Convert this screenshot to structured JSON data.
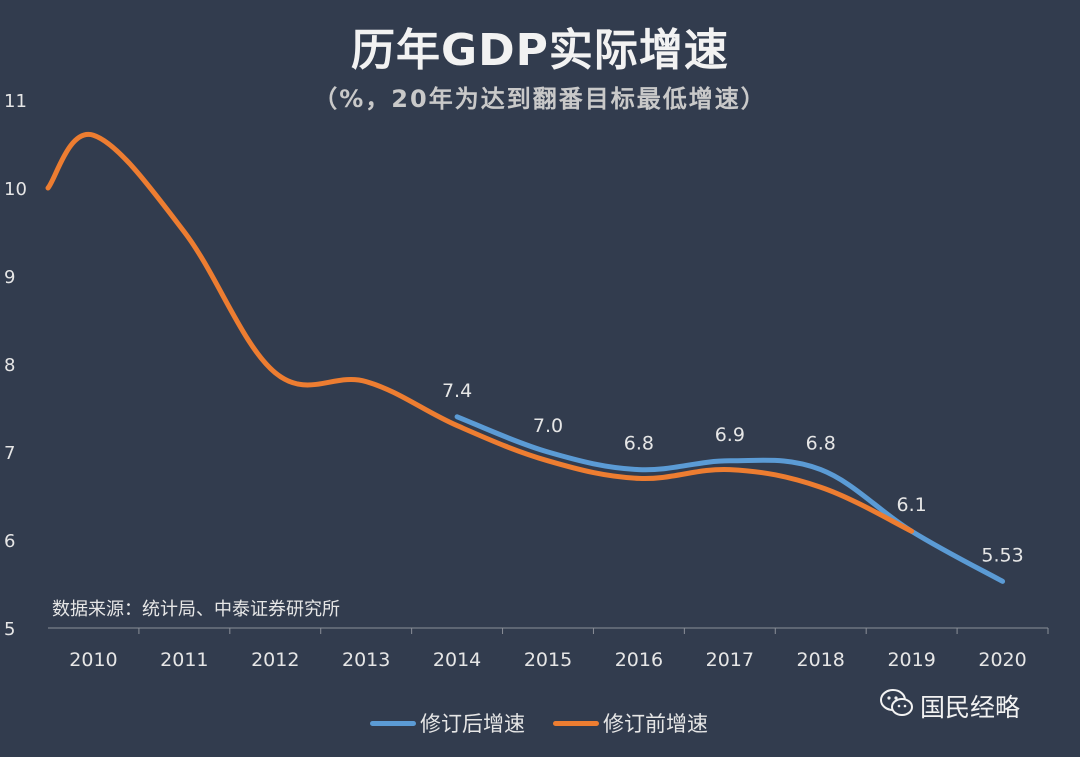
{
  "header": {
    "title": "历年GDP实际增速",
    "subtitle": "（%，20年为达到翻番目标最低增速）"
  },
  "footer": {
    "source": "数据来源：统计局、中泰证券研究所",
    "brand": "国民经略",
    "brand_icon": "wechat-icon"
  },
  "colors": {
    "background": "#323c4e",
    "revised": "#5b9bd5",
    "original": "#ed7d31",
    "text": "#e6e6e6",
    "axis": "#8a8f98"
  },
  "chart_data": {
    "type": "line",
    "title": "历年GDP实际增速",
    "subtitle": "（%，20年为达到翻番目标最低增速）",
    "xlabel": "",
    "ylabel": "",
    "categories": [
      "2010",
      "2011",
      "2012",
      "2013",
      "2014",
      "2015",
      "2016",
      "2017",
      "2018",
      "2019",
      "2020"
    ],
    "ylim": [
      5,
      11
    ],
    "yticks": [
      "5",
      "6",
      "7",
      "8",
      "9",
      "10",
      "11"
    ],
    "grid": false,
    "legend_position": "bottom",
    "series": [
      {
        "name": "修订后增速",
        "color": "#5b9bd5",
        "x": [
          "2014",
          "2015",
          "2016",
          "2017",
          "2018",
          "2019",
          "2020"
        ],
        "values": [
          7.4,
          7.0,
          6.8,
          6.9,
          6.8,
          6.1,
          5.53
        ],
        "labels": [
          "7.4",
          "7.0",
          "6.8",
          "6.9",
          "6.8",
          "6.1",
          "5.53"
        ]
      },
      {
        "name": "修订前增速",
        "color": "#ed7d31",
        "x": [
          "2010",
          "2011",
          "2012",
          "2013",
          "2014",
          "2015",
          "2016",
          "2017",
          "2018",
          "2019"
        ],
        "values": [
          10.6,
          9.5,
          7.9,
          7.8,
          7.3,
          6.9,
          6.7,
          6.8,
          6.6,
          6.1
        ]
      }
    ]
  }
}
